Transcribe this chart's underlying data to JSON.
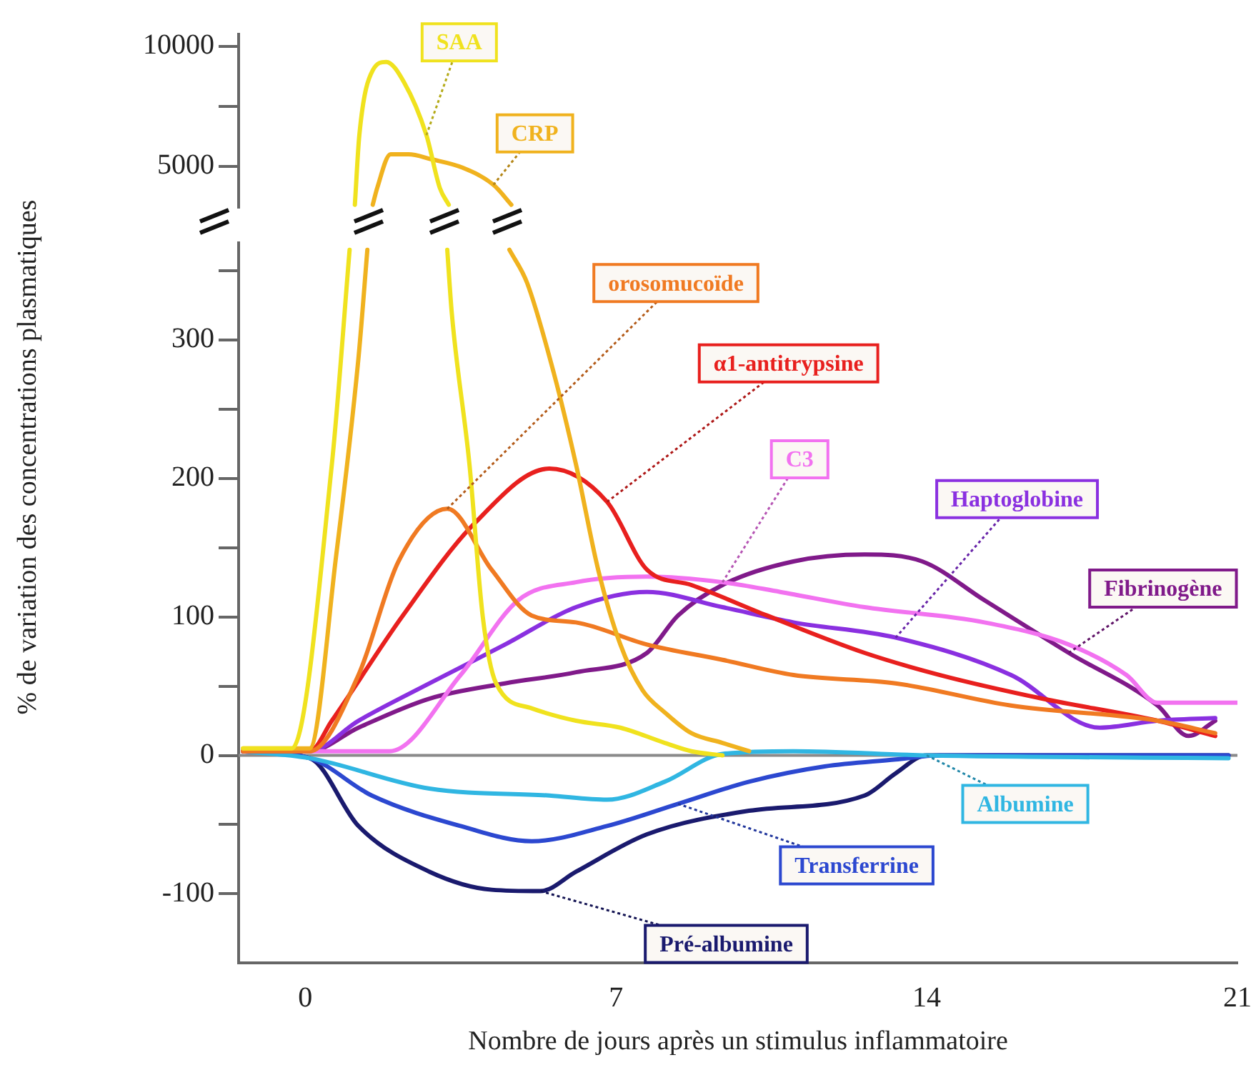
{
  "chart_data": [
    {
      "type": "line",
      "tick_labels": "y",
      "xlim": [
        -1.5,
        21
      ],
      "xticks": [
        0,
        7,
        14,
        21
      ],
      "ylim": [
        3300,
        10500
      ],
      "yticks": [
        5000,
        {
          "value": 7500,
          "label": null
        },
        10000
      ],
      "grid": false,
      "legend": false,
      "marker": "none",
      "line_style": "solid",
      "series": [
        {
          "name": "SAA",
          "color": "#f0e21e",
          "x": [
            1.1,
            1.2,
            1.5,
            1.8,
            2.2,
            2.7,
            3.0,
            3.2
          ],
          "values": [
            3400,
            6300,
            9000,
            9350,
            8500,
            6300,
            4100,
            3400
          ]
        },
        {
          "name": "CRP",
          "color": "#f0b21e",
          "x": [
            1.5,
            1.6,
            1.9,
            2.3,
            2.8,
            3.5,
            4.2,
            4.6
          ],
          "values": [
            3400,
            4100,
            5500,
            5500,
            5300,
            4950,
            4230,
            3400
          ]
        }
      ]
    },
    {
      "type": "line",
      "xlabel": "Nombre de jours après un stimulus inflammatoire",
      "ylabel": "% de variation des concentrations plasmatiques",
      "xlim": [
        -1.5,
        21
      ],
      "xticks": [
        0,
        7,
        14,
        21
      ],
      "ylim": [
        -150,
        370
      ],
      "yticks": [
        {
          "value": -100,
          "label": "-100"
        },
        {
          "value": -50,
          "label": null
        },
        0,
        {
          "value": 50,
          "label": null
        },
        100,
        {
          "value": 150,
          "label": null
        },
        200,
        {
          "value": 250,
          "label": null
        },
        300,
        {
          "value": 350,
          "label": null
        }
      ],
      "grid": false,
      "legend": false,
      "marker": "none",
      "line_style": "solid",
      "ref_lines": [
        {
          "axis": "y",
          "value": 0,
          "color": "#8a8a8a"
        }
      ],
      "series": [
        {
          "color": "#f0e21e",
          "x": [
            -1.4,
            -0.3,
            0.6,
            1.0,
            2.0,
            3.2,
            3.3,
            3.7,
            4.0,
            4.3,
            5.1,
            6.1,
            7.1,
            8.1,
            8.7,
            9.4
          ],
          "values": [
            5,
            5,
            210,
            365,
            null,
            365,
            320,
            210,
            100,
            52,
            34,
            25,
            20,
            9,
            3,
            0
          ]
        },
        {
          "color": "#f0b21e",
          "x": [
            -1.4,
            0.1,
            0.7,
            1.2,
            1.4,
            3.0,
            4.6,
            5.0,
            5.6,
            6.1,
            6.6,
            7.1,
            7.6,
            8.1,
            8.7,
            9.4,
            10.0
          ],
          "values": [
            5,
            5,
            145,
            287,
            365,
            null,
            365,
            341,
            276,
            210,
            134,
            80,
            47,
            31,
            16,
            9,
            3
          ]
        },
        {
          "name": "orosomucoïde",
          "color": "#f07a22",
          "x": [
            -1.4,
            0.1,
            1.2,
            2.1,
            3.2,
            4.2,
            5.1,
            6.1,
            7.7,
            9.4,
            11.0,
            13.3,
            15.9,
            19.2,
            20.5
          ],
          "values": [
            3,
            3,
            58,
            140,
            178,
            134,
            101,
            96,
            80,
            69,
            58,
            52,
            36,
            25,
            16
          ]
        },
        {
          "name": "α1-antitrypsine",
          "color": "#e8201e",
          "x": [
            -1.4,
            0.1,
            0.6,
            2.2,
            3.8,
            5.5,
            6.8,
            7.7,
            8.7,
            10.4,
            12.6,
            14.3,
            16.6,
            19.2,
            20.5
          ],
          "values": [
            3,
            3,
            25,
            101,
            167,
            207,
            183,
            134,
            123,
            101,
            74,
            58,
            41,
            25,
            14
          ]
        },
        {
          "name": "C3",
          "color": "#f272f0",
          "x": [
            -1.4,
            1.9,
            3.5,
            4.8,
            6.1,
            7.7,
            9.4,
            10.7,
            12.6,
            15.3,
            17.2,
            18.5,
            19.2,
            21.0
          ],
          "values": [
            3,
            3,
            58,
            112,
            125,
            129,
            125,
            118,
            107,
            96,
            80,
            58,
            38,
            38
          ]
        },
        {
          "name": "Haptoglobine",
          "color": "#8a30e0",
          "x": [
            -1.4,
            0.1,
            1.2,
            2.8,
            4.5,
            6.1,
            7.7,
            9.4,
            11.0,
            13.3,
            15.9,
            17.9,
            19.2,
            20.5
          ],
          "values": [
            3,
            3,
            25,
            52,
            80,
            107,
            118,
            107,
            96,
            85,
            58,
            20,
            25,
            27
          ]
        },
        {
          "name": "Fibrinogène",
          "color": "#801a8a",
          "x": [
            -1.4,
            0.1,
            1.2,
            2.8,
            4.5,
            6.1,
            7.7,
            8.4,
            9.4,
            11.0,
            12.6,
            13.9,
            15.3,
            17.2,
            19.2,
            19.9,
            20.5
          ],
          "values": [
            3,
            3,
            20,
            41,
            52,
            60,
            74,
            101,
            123,
            140,
            145,
            140,
            112,
            74,
            36,
            14,
            25
          ]
        },
        {
          "name": "Albumine",
          "color": "#30b6e2",
          "x": [
            -1.4,
            0.1,
            2.8,
            5.5,
            6.8,
            8.1,
            9.4,
            11.0,
            14.0,
            20.8
          ],
          "values": [
            3,
            -2,
            -24,
            -29,
            -32,
            -19,
            1,
            3,
            0,
            -2
          ]
        },
        {
          "name": "Transferrine",
          "color": "#2c48d0",
          "x": [
            -1.4,
            0.1,
            1.5,
            3.5,
            5.1,
            6.8,
            8.4,
            10.0,
            11.7,
            13.3,
            14.3,
            20.8
          ],
          "values": [
            3,
            -2,
            -29,
            -51,
            -62,
            -51,
            -35,
            -19,
            -8,
            -3,
            0,
            0
          ]
        },
        {
          "name": "Pré-albumine",
          "color": "#1a1a6e",
          "x": [
            -1.4,
            0.1,
            1.2,
            2.8,
            4.2,
            5.3,
            6.1,
            7.7,
            10.0,
            12.6,
            13.3,
            14.0,
            20.8
          ],
          "values": [
            3,
            -2,
            -51,
            -84,
            -97,
            -98,
            -84,
            -57,
            -40,
            -29,
            -13,
            0,
            0
          ]
        }
      ]
    }
  ]
}
